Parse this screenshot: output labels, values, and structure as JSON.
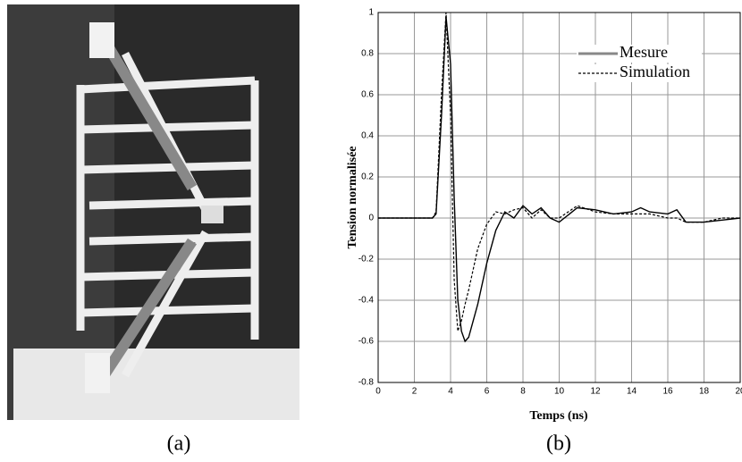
{
  "chart_data": {
    "type": "line",
    "xlabel": "Temps (ns)",
    "ylabel": "Tension normalisée",
    "x": [
      0,
      3,
      3.2,
      3.5,
      3.75,
      4,
      4.2,
      4.4,
      4.6,
      4.8,
      5,
      5.5,
      6,
      6.5,
      7,
      7.5,
      8,
      8.5,
      9,
      9.5,
      10,
      11,
      12,
      13,
      14,
      14.5,
      15,
      16,
      16.5,
      17,
      18,
      19,
      20
    ],
    "series": [
      {
        "name": "Mesure",
        "color": "#000000",
        "legend_color": "#888888",
        "dash": false,
        "values": [
          0,
          0,
          0.02,
          0.5,
          0.98,
          0.75,
          0.1,
          -0.4,
          -0.55,
          -0.6,
          -0.58,
          -0.42,
          -0.22,
          -0.06,
          0.03,
          0,
          0.06,
          0.02,
          0.05,
          0,
          -0.02,
          0.05,
          0.04,
          0.02,
          0.03,
          0.05,
          0.03,
          0.02,
          0.04,
          -0.02,
          -0.02,
          -0.01,
          0
        ]
      },
      {
        "name": "Simulation",
        "color": "#000000",
        "legend_color": "#000000",
        "dash": true,
        "values": [
          0,
          0,
          0.03,
          0.6,
          1.0,
          0.5,
          -0.3,
          -0.55,
          -0.5,
          -0.42,
          -0.35,
          -0.15,
          -0.03,
          0.03,
          0.02,
          0.04,
          0.05,
          0,
          0.04,
          0,
          0,
          0.06,
          0.03,
          0.02,
          0.02,
          0.02,
          0.02,
          0,
          0,
          -0.02,
          -0.02,
          0,
          0
        ]
      }
    ],
    "xlim": [
      0,
      20
    ],
    "xticks": [
      0,
      2,
      4,
      6,
      8,
      10,
      12,
      14,
      16,
      18,
      20
    ],
    "ylim": [
      -0.8,
      1
    ],
    "yticks": [
      -0.8,
      -0.6,
      -0.4,
      -0.2,
      0,
      0.2,
      0.4,
      0.6,
      0.8,
      1
    ],
    "grid": true,
    "legend": "upper right"
  },
  "panel_labels": [
    "(a)",
    "(b)"
  ]
}
